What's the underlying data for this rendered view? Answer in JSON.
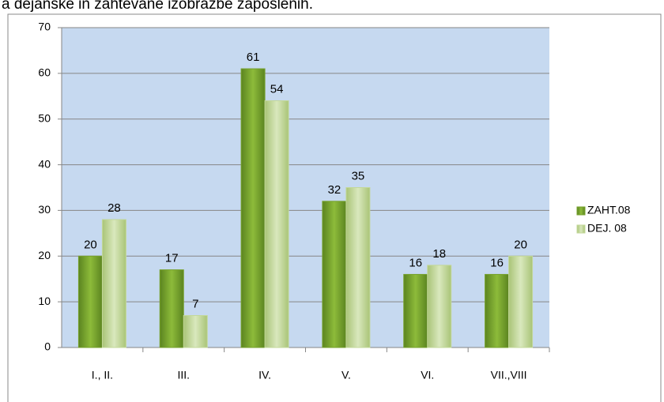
{
  "chart_data": {
    "type": "bar",
    "title": "a dejanske in zahtevane izobrazbe zaposlenih.",
    "categories": [
      "I., II.",
      "III.",
      "IV.",
      "V.",
      "VI.",
      "VII.,VIII"
    ],
    "series": [
      {
        "name": "ZAHT.08",
        "color": "#76a12b",
        "values": [
          20,
          17,
          61,
          32,
          16,
          16
        ]
      },
      {
        "name": "DEJ. 08",
        "color": "#c3d89a",
        "values": [
          28,
          7,
          54,
          35,
          18,
          20
        ]
      }
    ],
    "ylim": [
      0,
      70
    ],
    "yticks": [
      0,
      10,
      20,
      30,
      40,
      50,
      60,
      70
    ],
    "grid": true,
    "legend": "right"
  }
}
